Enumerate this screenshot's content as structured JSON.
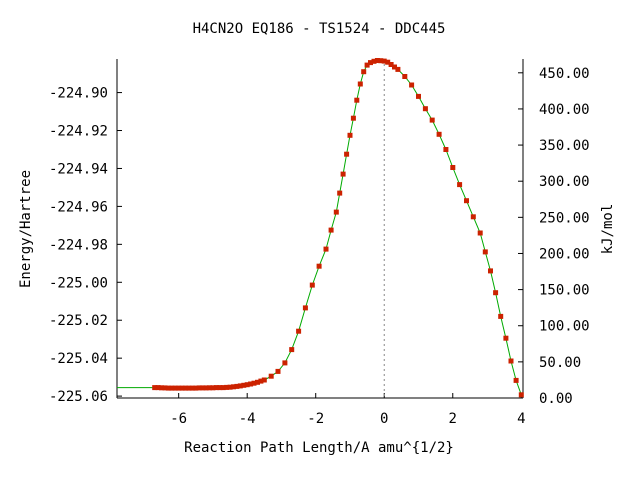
{
  "chart_data": {
    "type": "line",
    "title": "H4CN2O   EQ186 - TS1524 - DDC445",
    "xlabel": "Reaction Path Length/A amu^{1/2}",
    "ylabel": "Energy/Hartree",
    "y2label": "kJ/mol",
    "xlim": [
      -7.8,
      4.05
    ],
    "ylim": [
      -225.061,
      -224.8823
    ],
    "y2lim": [
      0,
      469.1
    ],
    "x_ticks": [
      -6,
      -4,
      -2,
      0,
      2,
      4
    ],
    "x_tick_labels": [
      "-6",
      "-4",
      "-2",
      "0",
      "2",
      "4"
    ],
    "y_ticks": [
      -224.9,
      -224.92,
      -224.94,
      -224.96,
      -224.98,
      -225.0,
      -225.02,
      -225.04,
      -225.06
    ],
    "y_tick_labels": [
      "-224.90",
      "-224.92",
      "-224.94",
      "-224.96",
      "-224.98",
      "-225.00",
      "-225.02",
      "-225.04",
      "-225.06"
    ],
    "y2_ticks": [
      0,
      50,
      100,
      150,
      200,
      250,
      300,
      350,
      400,
      450
    ],
    "y2_tick_labels": [
      "0.00",
      "50.00",
      "100.00",
      "150.00",
      "200.00",
      "250.00",
      "300.00",
      "350.00",
      "400.00",
      "450.00"
    ],
    "ts_marker_x": 0,
    "grid": false,
    "colors": {
      "line": "#00aa00",
      "marker": "#cc2200",
      "ts_line": "#888888"
    },
    "series": [
      {
        "x": [
          -6.7,
          -6.6,
          -6.5,
          -6.4,
          -6.3,
          -6.2,
          -6.1,
          -6.0,
          -5.9,
          -5.8,
          -5.7,
          -5.6,
          -5.5,
          -5.4,
          -5.3,
          -5.2,
          -5.1,
          -5.0,
          -4.9,
          -4.8,
          -4.7,
          -4.6,
          -4.5,
          -4.4,
          -4.3,
          -4.2,
          -4.1,
          -4.0,
          -3.9,
          -3.8,
          -3.7,
          -3.6,
          -3.5,
          -3.3,
          -3.1,
          -2.9,
          -2.7,
          -2.5,
          -2.3,
          -2.1,
          -1.9,
          -1.7,
          -1.55,
          -1.4,
          -1.3,
          -1.2,
          -1.1,
          -1.0,
          -0.9,
          -0.8,
          -0.7,
          -0.6,
          -0.5,
          -0.4,
          -0.3,
          -0.2,
          -0.1,
          0.0,
          0.1,
          0.2,
          0.3,
          0.4,
          0.6,
          0.8,
          1.0,
          1.2,
          1.4,
          1.6,
          1.8,
          2.0,
          2.2,
          2.4,
          2.6,
          2.8,
          2.95,
          3.1,
          3.25,
          3.4,
          3.55,
          3.7,
          3.85,
          4.0
        ],
        "y": [
          -225.0555,
          -225.0555,
          -225.0556,
          -225.0557,
          -225.0558,
          -225.0558,
          -225.0558,
          -225.0558,
          -225.0558,
          -225.0558,
          -225.0558,
          -225.0558,
          -225.0558,
          -225.0557,
          -225.0557,
          -225.0557,
          -225.0556,
          -225.0556,
          -225.0555,
          -225.0555,
          -225.0555,
          -225.0554,
          -225.0553,
          -225.0551,
          -225.0549,
          -225.0546,
          -225.0543,
          -225.054,
          -225.0536,
          -225.0532,
          -225.0527,
          -225.0521,
          -225.0515,
          -225.0495,
          -225.047,
          -225.0425,
          -225.0355,
          -225.0258,
          -225.0135,
          -225.0015,
          -224.9915,
          -224.9825,
          -224.9725,
          -224.963,
          -224.953,
          -224.943,
          -224.9325,
          -224.9225,
          -224.9135,
          -224.904,
          -224.8955,
          -224.889,
          -224.8855,
          -224.8842,
          -224.8835,
          -224.8831,
          -224.8832,
          -224.8834,
          -224.884,
          -224.8852,
          -224.8865,
          -224.8878,
          -224.8915,
          -224.896,
          -224.902,
          -224.9085,
          -224.9145,
          -224.922,
          -224.93,
          -224.9395,
          -224.9485,
          -224.957,
          -224.9655,
          -224.974,
          -224.984,
          -224.994,
          -225.0055,
          -225.018,
          -225.0295,
          -225.0415,
          -225.0517,
          -225.0593
        ]
      }
    ]
  }
}
